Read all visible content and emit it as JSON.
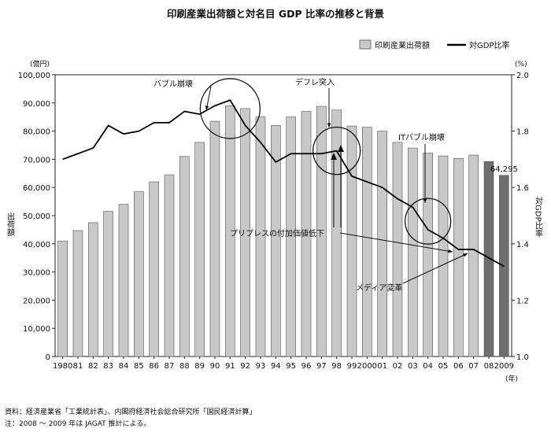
{
  "chart_data": {
    "type": "bar",
    "title": "印刷産業出荷額と対名目 GDP 比率の推移と背景",
    "legend": {
      "bar_label": "印刷産業出荷額",
      "line_label": "対GDP比率",
      "position": "top-right"
    },
    "y_left": {
      "unit": "(億円)",
      "label": "出荷額",
      "lim": [
        0,
        100000
      ],
      "ticks": [
        "0",
        "10,000",
        "20,000",
        "30,000",
        "40,000",
        "50,000",
        "60,000",
        "70,000",
        "80,000",
        "90,000",
        "100,000"
      ]
    },
    "y_right": {
      "unit": "(%)",
      "label": "対GDP比率",
      "lim": [
        1.0,
        2.0
      ],
      "ticks": [
        "1.0",
        "1.2",
        "1.4",
        "1.6",
        "1.8",
        "2.0"
      ]
    },
    "x_unit": "(年)",
    "categories": [
      "1980",
      "81",
      "82",
      "83",
      "84",
      "85",
      "86",
      "87",
      "88",
      "89",
      "90",
      "91",
      "92",
      "93",
      "94",
      "95",
      "96",
      "97",
      "98",
      "99",
      "2000",
      "01",
      "02",
      "03",
      "04",
      "05",
      "06",
      "07",
      "08",
      "2009"
    ],
    "series": [
      {
        "name": "印刷産業出荷額",
        "type": "bar",
        "values": [
          41000,
          44700,
          47500,
          51500,
          54000,
          58500,
          62000,
          64500,
          71000,
          76000,
          83500,
          89000,
          88000,
          85000,
          82000,
          85000,
          87000,
          88800,
          87500,
          81800,
          81400,
          80000,
          76000,
          74000,
          72200,
          71200,
          70300,
          71500,
          69200,
          64295
        ],
        "estimated_from_index": 28,
        "color": "#c8c8c8",
        "estimated_color": "#6e6e6e"
      },
      {
        "name": "対GDP比率",
        "type": "line",
        "values": [
          1.7,
          1.72,
          1.74,
          1.82,
          1.79,
          1.8,
          1.83,
          1.83,
          1.87,
          1.86,
          1.89,
          1.91,
          1.82,
          1.76,
          1.69,
          1.72,
          1.72,
          1.72,
          1.73,
          1.64,
          1.62,
          1.6,
          1.56,
          1.53,
          1.45,
          1.42,
          1.38,
          1.38,
          1.35,
          1.32
        ],
        "color": "#000000"
      }
    ],
    "data_labels": [
      {
        "index": 29,
        "text": "64,295"
      }
    ],
    "annotations": [
      {
        "text": "バブル崩壊",
        "circle_index": 11,
        "circle_value": 1.88
      },
      {
        "text": "デフレ突入",
        "circle_index": 18,
        "circle_value": 1.73
      },
      {
        "text": "ITバブル崩壊",
        "circle_index": 24,
        "circle_value": 1.48
      },
      {
        "text": "プリプレスの付加価値低下"
      },
      {
        "text": "メディア変革"
      }
    ],
    "grid": false
  },
  "footnotes": [
    "資料：経済産業省「工業統計表」、内閣府経済社会総合研究所「国民経済計算」",
    "注：2008 ～ 2009 年は JAGAT 推計による。"
  ]
}
